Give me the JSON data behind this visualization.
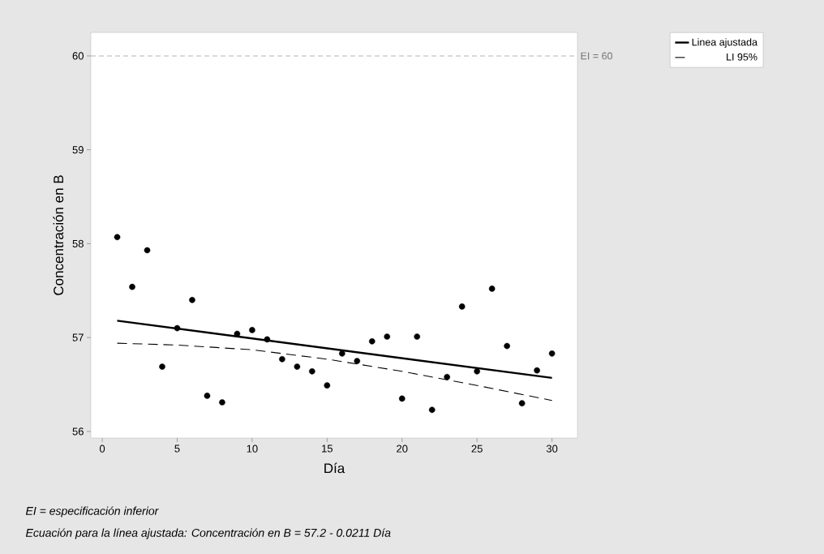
{
  "chart_data": {
    "type": "scatter",
    "xlabel": "Día",
    "ylabel": "Concentración en B",
    "xlim": [
      -0.76,
      31.7
    ],
    "ylim": [
      55.93,
      60.25
    ],
    "xticks": [
      0,
      5,
      10,
      15,
      20,
      25,
      30
    ],
    "yticks": [
      56,
      57,
      58,
      59,
      60
    ],
    "legend": "top right",
    "x": [
      1,
      2,
      3,
      4,
      5,
      6,
      7,
      8,
      9,
      10,
      11,
      12,
      13,
      14,
      15,
      16,
      17,
      18,
      19,
      20,
      21,
      22,
      23,
      24,
      25,
      26,
      27,
      28,
      29,
      30
    ],
    "series": [
      {
        "color": "#000000",
        "marker": "circle",
        "values": [
          58.07,
          57.54,
          57.93,
          56.69,
          57.1,
          57.4,
          56.38,
          56.31,
          57.04,
          57.08,
          56.98,
          56.77,
          56.69,
          56.64,
          56.49,
          56.83,
          56.75,
          56.96,
          57.01,
          56.35,
          57.01,
          56.23,
          56.58,
          57.33,
          56.64,
          57.52,
          56.91,
          56.3,
          56.65,
          56.83
        ]
      },
      {
        "type": "line",
        "name": "Linea ajustada",
        "color": "#000000",
        "x": [
          1,
          30
        ],
        "values": [
          57.18,
          56.57
        ],
        "line_style": "solid",
        "marker": "none"
      },
      {
        "type": "line",
        "name": "LI 95%",
        "color": "#000000",
        "x": [
          1,
          5,
          10,
          15,
          20,
          25,
          30
        ],
        "values": [
          56.94,
          56.92,
          56.87,
          56.77,
          56.64,
          56.49,
          56.33
        ],
        "line_style": "dashed",
        "marker": "none"
      }
    ],
    "ref_lines": [
      {
        "axis": "y",
        "value": 60,
        "label": "EI = 60",
        "color": "#b4b4b4",
        "line_style": "dashed"
      }
    ],
    "annotations": [
      "EI = especificación inferior",
      "Ecuación para la línea ajustada: Concentración en B = 57.2 - 0.0211 Día"
    ]
  }
}
